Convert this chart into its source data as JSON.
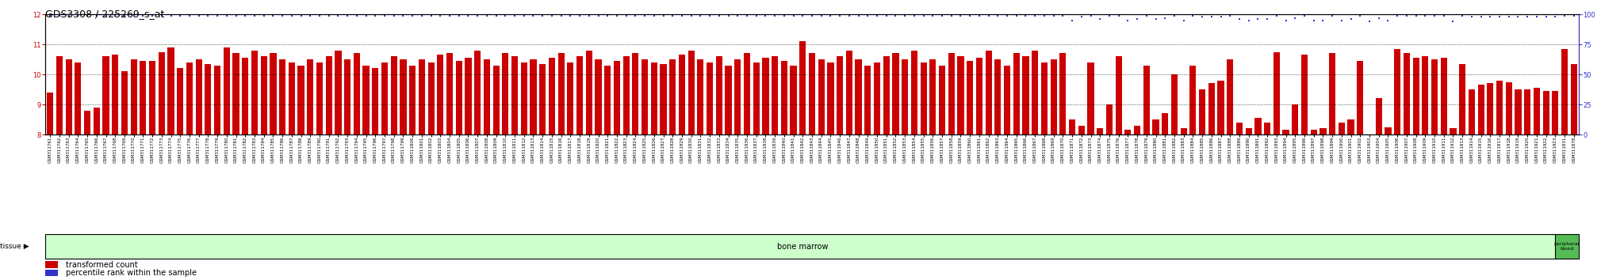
{
  "title": "GDS3308 / 225269_s_at",
  "samples_bm": [
    "GSM311761",
    "GSM311762",
    "GSM311763",
    "GSM311764",
    "GSM311765",
    "GSM311766",
    "GSM311767",
    "GSM311768",
    "GSM311769",
    "GSM311770",
    "GSM311771",
    "GSM311772",
    "GSM311773",
    "GSM311774",
    "GSM311775",
    "GSM311776",
    "GSM311777",
    "GSM311778",
    "GSM311779",
    "GSM311780",
    "GSM311781",
    "GSM311782",
    "GSM311783",
    "GSM311784",
    "GSM311785",
    "GSM311786",
    "GSM311787",
    "GSM311788",
    "GSM311789",
    "GSM311790",
    "GSM311791",
    "GSM311792",
    "GSM311793",
    "GSM311794",
    "GSM311795",
    "GSM311796",
    "GSM311797",
    "GSM311798",
    "GSM311799",
    "GSM311800",
    "GSM311801",
    "GSM311802",
    "GSM311803",
    "GSM311804",
    "GSM311805",
    "GSM311806",
    "GSM311807",
    "GSM311808",
    "GSM311809",
    "GSM311810",
    "GSM311811",
    "GSM311812",
    "GSM311813",
    "GSM311814",
    "GSM311815",
    "GSM311816",
    "GSM311817",
    "GSM311818",
    "GSM311819",
    "GSM311820",
    "GSM311821",
    "GSM311822",
    "GSM311823",
    "GSM311824",
    "GSM311825",
    "GSM311826",
    "GSM311827",
    "GSM311828",
    "GSM311829",
    "GSM311830",
    "GSM311831",
    "GSM311832",
    "GSM311833",
    "GSM311834",
    "GSM311835",
    "GSM311836",
    "GSM311837",
    "GSM311838",
    "GSM311839",
    "GSM311840",
    "GSM311841",
    "GSM311842",
    "GSM311843",
    "GSM311844",
    "GSM311845",
    "GSM311846",
    "GSM311847",
    "GSM311848",
    "GSM311849",
    "GSM311850",
    "GSM311851",
    "GSM311852",
    "GSM311853",
    "GSM311854",
    "GSM311855",
    "GSM311856",
    "GSM311857",
    "GSM311858",
    "GSM311859",
    "GSM311860",
    "GSM311861",
    "GSM311862",
    "GSM311863",
    "GSM311864",
    "GSM311865",
    "GSM311866",
    "GSM311867",
    "GSM311868",
    "GSM311869",
    "GSM311870",
    "GSM311871",
    "GSM311872",
    "GSM311873",
    "GSM311874",
    "GSM311875",
    "GSM311876",
    "GSM311877",
    "GSM311878",
    "GSM311879",
    "GSM311880",
    "GSM311881",
    "GSM311882",
    "GSM311883",
    "GSM311884",
    "GSM311885",
    "GSM311886",
    "GSM311887",
    "GSM311888",
    "GSM311889",
    "GSM311890",
    "GSM311891",
    "GSM311892",
    "GSM311893",
    "GSM311894",
    "GSM311895",
    "GSM311896",
    "GSM311897",
    "GSM311898",
    "GSM311899",
    "GSM311900",
    "GSM311901",
    "GSM311902",
    "GSM311903",
    "GSM311904",
    "GSM311905",
    "GSM311906",
    "GSM311907",
    "GSM311908",
    "GSM311909",
    "GSM311910",
    "GSM311911",
    "GSM311912",
    "GSM311913",
    "GSM311914",
    "GSM311915",
    "GSM311916",
    "GSM311917",
    "GSM311918",
    "GSM311919",
    "GSM311920",
    "GSM311921",
    "GSM311922",
    "GSM311923"
  ],
  "samples_pb": [
    "GSM311831",
    "GSM311878"
  ],
  "bar_values_bm": [
    9.4,
    10.6,
    10.5,
    10.4,
    8.8,
    8.9,
    10.6,
    10.65,
    10.1,
    10.5,
    10.45,
    10.45,
    10.75,
    10.9,
    10.2,
    10.4,
    10.5,
    10.35,
    10.3,
    10.9,
    10.7,
    10.55,
    10.8,
    10.6,
    10.7,
    10.5,
    10.4,
    10.3,
    10.5,
    10.4,
    10.6,
    10.8,
    10.5,
    10.7,
    10.3,
    10.2,
    10.4,
    10.6,
    10.5,
    10.3,
    10.5,
    10.4,
    10.65,
    10.7,
    10.45,
    10.55,
    10.8,
    10.5,
    10.3,
    10.7,
    10.6,
    10.4,
    10.5,
    10.35,
    10.55,
    10.7,
    10.4,
    10.6,
    10.8,
    10.5,
    10.3,
    10.45,
    10.6,
    10.7,
    10.5,
    10.4,
    10.35,
    10.5,
    10.65,
    10.8,
    10.5,
    10.4,
    10.6,
    10.3,
    10.5,
    10.7,
    10.4,
    10.55,
    10.6,
    10.45,
    10.3,
    11.1,
    10.7,
    10.5,
    10.4,
    10.6,
    10.8,
    10.5,
    10.3,
    10.4,
    10.6,
    10.7,
    10.5,
    10.8,
    10.4,
    10.5,
    10.3,
    10.7,
    10.6,
    10.45,
    10.55,
    10.8,
    10.5,
    10.3,
    10.7,
    10.6,
    10.8,
    10.4,
    10.5,
    10.7,
    8.5,
    8.3,
    10.4,
    8.2,
    9.0,
    10.6,
    8.15,
    8.3,
    10.3,
    8.5,
    8.7,
    10.0,
    8.2,
    10.3,
    9.5,
    9.7,
    9.8,
    10.5,
    8.4,
    8.2,
    8.55,
    8.4,
    10.75,
    8.15,
    9.0,
    10.65,
    8.15,
    8.2,
    10.7,
    8.4,
    8.5,
    10.45,
    8.0,
    9.2,
    8.25,
    10.85,
    10.7,
    10.55,
    10.6,
    10.5,
    10.55,
    8.2,
    10.35,
    9.5,
    9.65,
    9.7,
    9.8,
    9.75,
    9.5,
    9.5,
    9.55,
    9.45,
    9.45
  ],
  "bar_values_pb": [
    10.85,
    10.35
  ],
  "pct_bm": [
    99,
    99,
    99,
    99,
    99,
    99,
    99,
    99,
    99,
    99,
    99,
    99,
    99,
    99,
    99,
    99,
    99,
    99,
    99,
    99,
    99,
    99,
    99,
    99,
    99,
    99,
    99,
    99,
    99,
    99,
    99,
    99,
    99,
    99,
    99,
    99,
    99,
    99,
    99,
    99,
    99,
    99,
    99,
    99,
    99,
    99,
    99,
    99,
    99,
    99,
    99,
    99,
    99,
    99,
    99,
    99,
    99,
    99,
    99,
    99,
    99,
    99,
    99,
    99,
    99,
    99,
    99,
    99,
    99,
    99,
    99,
    99,
    99,
    99,
    99,
    99,
    99,
    99,
    99,
    99,
    99,
    99,
    99,
    99,
    99,
    99,
    99,
    99,
    99,
    99,
    99,
    99,
    99,
    99,
    99,
    99,
    99,
    99,
    99,
    99,
    99,
    99,
    99,
    99,
    99,
    99,
    99,
    99,
    99,
    99,
    95,
    98,
    99,
    96,
    99,
    99,
    95,
    96,
    99,
    96,
    97,
    99,
    95,
    99,
    98,
    98,
    98,
    99,
    96,
    95,
    96,
    96,
    99,
    95,
    97,
    99,
    95,
    95,
    99,
    95,
    96,
    99,
    94,
    97,
    95,
    99,
    99,
    99,
    99,
    99,
    99,
    94,
    99,
    98,
    98,
    98,
    98,
    98,
    98,
    98,
    98,
    98,
    98
  ],
  "pct_pb": [
    99,
    99
  ],
  "bar_color": "#cc0000",
  "dot_color": "#3333cc",
  "bar_bottom": 8.0,
  "ylim_left": [
    8.0,
    12.0
  ],
  "ylim_right": [
    0,
    100
  ],
  "yticks_left": [
    8,
    9,
    10,
    11,
    12
  ],
  "yticks_right": [
    0,
    25,
    50,
    75,
    100
  ],
  "tissue_label": "tissue",
  "bone_marrow_label": "bone marrow",
  "peripheral_blood_label": "peripheral\nblood",
  "tissue_bg_color": "#ccffcc",
  "peripheral_bg_color": "#55bb55",
  "legend_bar_label": "transformed count",
  "legend_dot_label": "percentile rank within the sample",
  "title_fontsize": 9,
  "tick_fontsize": 6,
  "xtick_fontsize": 4,
  "label_fontsize": 7
}
